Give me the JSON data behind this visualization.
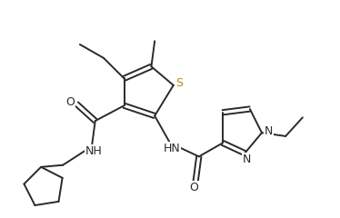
{
  "bg_color": "#ffffff",
  "bond_color": "#2a2a2a",
  "S_color": "#b8860b",
  "N_color": "#2a2a2a",
  "O_color": "#2a2a2a",
  "line_width": 1.4,
  "figsize": [
    3.74,
    2.4
  ],
  "dpi": 100,
  "xlim": [
    0,
    10
  ],
  "ylim": [
    0,
    6.4
  ]
}
